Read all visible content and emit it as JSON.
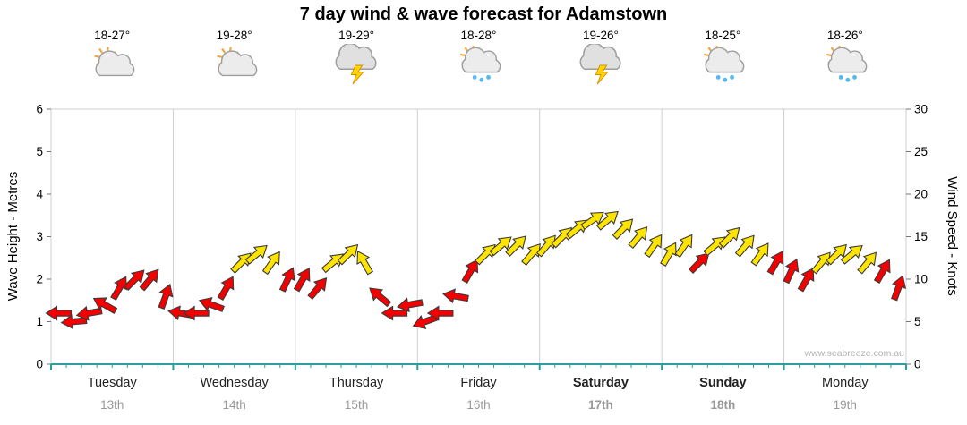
{
  "title": "7 day wind & wave forecast for Adamstown",
  "watermark": "www.seabreeze.com.au",
  "axes": {
    "wave_label": "Wave Height - Metres",
    "wind_label": "Wind Speed - Knots",
    "wave_range": [
      0,
      6
    ],
    "wind_range": [
      0,
      30
    ],
    "wave_ticks": [
      0,
      1,
      2,
      3,
      4,
      5,
      6
    ],
    "wind_ticks": [
      0,
      5,
      10,
      15,
      20,
      25,
      30
    ]
  },
  "days": [
    {
      "name": "Tuesday",
      "date": "13th",
      "temp": "18-27°",
      "icon": "sun-cloud",
      "bold": false
    },
    {
      "name": "Wednesday",
      "date": "14th",
      "temp": "19-28°",
      "icon": "sun-cloud",
      "bold": false
    },
    {
      "name": "Thursday",
      "date": "15th",
      "temp": "19-29°",
      "icon": "storm",
      "bold": false
    },
    {
      "name": "Friday",
      "date": "16th",
      "temp": "18-28°",
      "icon": "sun-cloud-rain",
      "bold": false
    },
    {
      "name": "Saturday",
      "date": "17th",
      "temp": "19-26°",
      "icon": "storm",
      "bold": true
    },
    {
      "name": "Sunday",
      "date": "18th",
      "temp": "18-25°",
      "icon": "sun-cloud-rain",
      "bold": true
    },
    {
      "name": "Monday",
      "date": "19th",
      "temp": "18-26°",
      "icon": "sun-cloud-rain",
      "bold": false
    }
  ],
  "colors": {
    "red": "#f40000",
    "yellow": "#ffe400",
    "arrow_outline": "#3a3a3a",
    "axis": "#2d9d9d",
    "grid": "#cfcfcf",
    "text": "#000000",
    "muted": "#999999",
    "watermark": "#b3b3b3"
  },
  "chart_data": {
    "type": "wind-arrows",
    "title": "7 day wind & wave forecast for Adamstown",
    "x_unit": "days",
    "x_range": [
      0,
      7
    ],
    "categories": [
      "Tuesday 13th",
      "Wednesday 14th",
      "Thursday 15th",
      "Friday 16th",
      "Saturday 17th",
      "Sunday 18th",
      "Monday 19th"
    ],
    "wave_axis": {
      "label": "Wave Height - Metres",
      "range": [
        0,
        6
      ]
    },
    "wind_axis": {
      "label": "Wind Speed - Knots",
      "range": [
        0,
        30
      ]
    },
    "legend": "arrow color: red = lighter winds, yellow = stronger winds; arrow angle = wind direction",
    "points": [
      {
        "t": 0.062,
        "knots": 6,
        "dir": 180,
        "color": "red"
      },
      {
        "t": 0.188,
        "knots": 5,
        "dir": 175,
        "color": "red"
      },
      {
        "t": 0.312,
        "knots": 6,
        "dir": 170,
        "color": "red"
      },
      {
        "t": 0.438,
        "knots": 7,
        "dir": -150,
        "color": "red"
      },
      {
        "t": 0.562,
        "knots": 9,
        "dir": -60,
        "color": "red"
      },
      {
        "t": 0.688,
        "knots": 10,
        "dir": -45,
        "color": "red"
      },
      {
        "t": 0.812,
        "knots": 10,
        "dir": -50,
        "color": "red"
      },
      {
        "t": 0.938,
        "knots": 8,
        "dir": -70,
        "color": "red"
      },
      {
        "t": 1.062,
        "knots": 6,
        "dir": -170,
        "color": "red"
      },
      {
        "t": 1.188,
        "knots": 6,
        "dir": 180,
        "color": "red"
      },
      {
        "t": 1.312,
        "knots": 7,
        "dir": -160,
        "color": "red"
      },
      {
        "t": 1.438,
        "knots": 9,
        "dir": -60,
        "color": "red"
      },
      {
        "t": 1.562,
        "knots": 12,
        "dir": -45,
        "color": "yellow"
      },
      {
        "t": 1.688,
        "knots": 13,
        "dir": -40,
        "color": "yellow"
      },
      {
        "t": 1.812,
        "knots": 12,
        "dir": -55,
        "color": "yellow"
      },
      {
        "t": 1.938,
        "knots": 10,
        "dir": -65,
        "color": "red"
      },
      {
        "t": 2.062,
        "knots": 10,
        "dir": -60,
        "color": "red"
      },
      {
        "t": 2.188,
        "knots": 9,
        "dir": -50,
        "color": "red"
      },
      {
        "t": 2.312,
        "knots": 12,
        "dir": -40,
        "color": "yellow"
      },
      {
        "t": 2.438,
        "knots": 13,
        "dir": -45,
        "color": "yellow"
      },
      {
        "t": 2.562,
        "knots": 12,
        "dir": -120,
        "color": "yellow"
      },
      {
        "t": 2.688,
        "knots": 8,
        "dir": -140,
        "color": "red"
      },
      {
        "t": 2.812,
        "knots": 6,
        "dir": 180,
        "color": "red"
      },
      {
        "t": 2.938,
        "knots": 7,
        "dir": 170,
        "color": "red"
      },
      {
        "t": 3.062,
        "knots": 5,
        "dir": 160,
        "color": "red"
      },
      {
        "t": 3.188,
        "knots": 6,
        "dir": 180,
        "color": "red"
      },
      {
        "t": 3.312,
        "knots": 8,
        "dir": -170,
        "color": "red"
      },
      {
        "t": 3.438,
        "knots": 11,
        "dir": -60,
        "color": "red"
      },
      {
        "t": 3.562,
        "knots": 13,
        "dir": -45,
        "color": "yellow"
      },
      {
        "t": 3.688,
        "knots": 14,
        "dir": -40,
        "color": "yellow"
      },
      {
        "t": 3.812,
        "knots": 14,
        "dir": -45,
        "color": "yellow"
      },
      {
        "t": 3.938,
        "knots": 13,
        "dir": -50,
        "color": "yellow"
      },
      {
        "t": 4.062,
        "knots": 14,
        "dir": -50,
        "color": "yellow"
      },
      {
        "t": 4.188,
        "knots": 15,
        "dir": -45,
        "color": "yellow"
      },
      {
        "t": 4.312,
        "knots": 16,
        "dir": -40,
        "color": "yellow"
      },
      {
        "t": 4.438,
        "knots": 17,
        "dir": -35,
        "color": "yellow"
      },
      {
        "t": 4.562,
        "knots": 17,
        "dir": -40,
        "color": "yellow"
      },
      {
        "t": 4.688,
        "knots": 16,
        "dir": -45,
        "color": "yellow"
      },
      {
        "t": 4.812,
        "knots": 15,
        "dir": -50,
        "color": "yellow"
      },
      {
        "t": 4.938,
        "knots": 14,
        "dir": -55,
        "color": "yellow"
      },
      {
        "t": 5.062,
        "knots": 13,
        "dir": -60,
        "color": "yellow"
      },
      {
        "t": 5.188,
        "knots": 14,
        "dir": -55,
        "color": "yellow"
      },
      {
        "t": 5.312,
        "knots": 12,
        "dir": -45,
        "color": "red"
      },
      {
        "t": 5.438,
        "knots": 14,
        "dir": -40,
        "color": "yellow"
      },
      {
        "t": 5.562,
        "knots": 15,
        "dir": -45,
        "color": "yellow"
      },
      {
        "t": 5.688,
        "knots": 14,
        "dir": -50,
        "color": "yellow"
      },
      {
        "t": 5.812,
        "knots": 13,
        "dir": -55,
        "color": "yellow"
      },
      {
        "t": 5.938,
        "knots": 12,
        "dir": -60,
        "color": "red"
      },
      {
        "t": 6.062,
        "knots": 11,
        "dir": -65,
        "color": "red"
      },
      {
        "t": 6.188,
        "knots": 10,
        "dir": -60,
        "color": "red"
      },
      {
        "t": 6.312,
        "knots": 12,
        "dir": -50,
        "color": "yellow"
      },
      {
        "t": 6.438,
        "knots": 13,
        "dir": -45,
        "color": "yellow"
      },
      {
        "t": 6.562,
        "knots": 13,
        "dir": -40,
        "color": "yellow"
      },
      {
        "t": 6.688,
        "knots": 12,
        "dir": -50,
        "color": "yellow"
      },
      {
        "t": 6.812,
        "knots": 11,
        "dir": -60,
        "color": "red"
      },
      {
        "t": 6.938,
        "knots": 9,
        "dir": -70,
        "color": "red"
      }
    ]
  }
}
